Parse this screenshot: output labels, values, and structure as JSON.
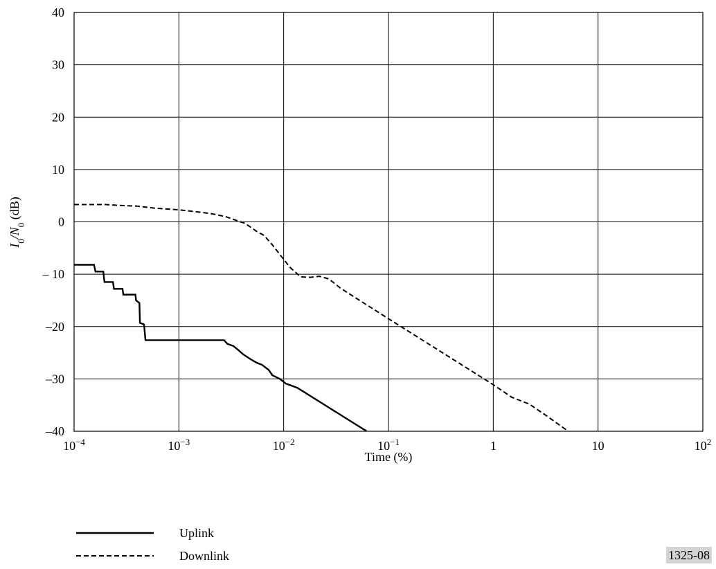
{
  "figure_id": "1325-08",
  "chart_data": {
    "type": "line",
    "title": "",
    "xlabel": "Time (%)",
    "ylabel": {
      "main": "I",
      "sub1": "0",
      "mid": "/N",
      "sub2": "0",
      "unit": " (dB)"
    },
    "x_scale": "log",
    "xlim": [
      0.0001,
      100
    ],
    "ylim": [
      -40,
      40
    ],
    "grid": true,
    "legend_position": "bottom-left",
    "x_ticks": [
      {
        "v": 0.0001,
        "label": "10",
        "exp": "−4"
      },
      {
        "v": 0.001,
        "label": "10",
        "exp": "−3"
      },
      {
        "v": 0.01,
        "label": "10",
        "exp": "−2"
      },
      {
        "v": 0.1,
        "label": "10",
        "exp": "−1"
      },
      {
        "v": 1,
        "label": "1",
        "exp": ""
      },
      {
        "v": 10,
        "label": "10",
        "exp": ""
      },
      {
        "v": 100,
        "label": "10",
        "exp": "2"
      }
    ],
    "y_ticks": [
      {
        "v": 40,
        "label": "40"
      },
      {
        "v": 30,
        "label": "30"
      },
      {
        "v": 20,
        "label": "20"
      },
      {
        "v": 10,
        "label": "10"
      },
      {
        "v": 0,
        "label": "0"
      },
      {
        "v": -10,
        "label": "– 10"
      },
      {
        "v": -20,
        "label": "–20"
      },
      {
        "v": -30,
        "label": "–30"
      },
      {
        "v": -40,
        "label": "–40"
      }
    ],
    "series": [
      {
        "name": "Uplink",
        "style": "solid",
        "points": [
          [
            0.0001,
            -8.2
          ],
          [
            0.000155,
            -8.2
          ],
          [
            0.00016,
            -9.5
          ],
          [
            0.00019,
            -9.5
          ],
          [
            0.000195,
            -11.5
          ],
          [
            0.000235,
            -11.5
          ],
          [
            0.00024,
            -12.8
          ],
          [
            0.00029,
            -12.8
          ],
          [
            0.000295,
            -13.9
          ],
          [
            0.000385,
            -13.9
          ],
          [
            0.00039,
            -15.0
          ],
          [
            0.00042,
            -15.5
          ],
          [
            0.000425,
            -19.3
          ],
          [
            0.000465,
            -19.6
          ],
          [
            0.00048,
            -22.6
          ],
          [
            0.0027,
            -22.6
          ],
          [
            0.0029,
            -23.3
          ],
          [
            0.0033,
            -23.7
          ],
          [
            0.0037,
            -24.5
          ],
          [
            0.0041,
            -25.3
          ],
          [
            0.0048,
            -26.2
          ],
          [
            0.0055,
            -26.9
          ],
          [
            0.0062,
            -27.3
          ],
          [
            0.0072,
            -28.3
          ],
          [
            0.0078,
            -29.3
          ],
          [
            0.0092,
            -30.0
          ],
          [
            0.0105,
            -30.9
          ],
          [
            0.0135,
            -31.7
          ],
          [
            0.062,
            -40.0
          ]
        ]
      },
      {
        "name": "Downlink",
        "style": "dashed",
        "points": [
          [
            0.0001,
            3.3
          ],
          [
            0.0002,
            3.3
          ],
          [
            0.0003,
            3.1
          ],
          [
            0.0004,
            3.0
          ],
          [
            0.0006,
            2.6
          ],
          [
            0.001,
            2.3
          ],
          [
            0.0015,
            1.9
          ],
          [
            0.002,
            1.6
          ],
          [
            0.0028,
            1.0
          ],
          [
            0.0035,
            0.3
          ],
          [
            0.0043,
            -0.3
          ],
          [
            0.0055,
            -1.8
          ],
          [
            0.0065,
            -2.6
          ],
          [
            0.0078,
            -4.4
          ],
          [
            0.0095,
            -6.6
          ],
          [
            0.0115,
            -8.7
          ],
          [
            0.0145,
            -10.5
          ],
          [
            0.018,
            -10.6
          ],
          [
            0.022,
            -10.4
          ],
          [
            0.027,
            -10.9
          ],
          [
            0.035,
            -12.7
          ],
          [
            0.1,
            -18.5
          ],
          [
            1,
            -31.1
          ],
          [
            1.5,
            -33.5
          ],
          [
            2.2,
            -34.8
          ],
          [
            3.2,
            -37.0
          ],
          [
            5.2,
            -40.0
          ]
        ]
      }
    ]
  }
}
